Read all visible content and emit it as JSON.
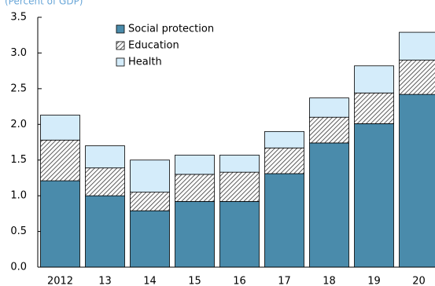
{
  "chart_data": {
    "type": "stacked_bar",
    "subtitle": "(Percent of GDP)",
    "categories": [
      "2012",
      "13",
      "14",
      "15",
      "16",
      "17",
      "18",
      "19",
      "20"
    ],
    "series": [
      {
        "name": "Social protection",
        "color": "#4a8bab",
        "values": [
          1.21,
          1.0,
          0.79,
          0.92,
          0.92,
          1.31,
          1.74,
          2.01,
          2.42
        ]
      },
      {
        "name": "Education",
        "color": "hatch",
        "values": [
          0.57,
          0.39,
          0.26,
          0.38,
          0.41,
          0.36,
          0.36,
          0.43,
          0.48
        ]
      },
      {
        "name": "Health",
        "color": "#d4ecfa",
        "values": [
          0.35,
          0.31,
          0.45,
          0.27,
          0.24,
          0.23,
          0.27,
          0.38,
          0.39
        ]
      }
    ],
    "ylim": [
      0,
      3.5
    ],
    "yticks": [
      {
        "value": 0,
        "label": "0.0"
      },
      {
        "value": 0.5,
        "label": "0.5"
      },
      {
        "value": 1,
        "label": "1.0"
      },
      {
        "value": 1.5,
        "label": "1.5"
      },
      {
        "value": 2,
        "label": "2.0"
      },
      {
        "value": 2.5,
        "label": "2.5"
      },
      {
        "value": 3,
        "label": "3.0"
      },
      {
        "value": 3.5,
        "label": "3.5"
      }
    ],
    "legend": "top-left"
  }
}
